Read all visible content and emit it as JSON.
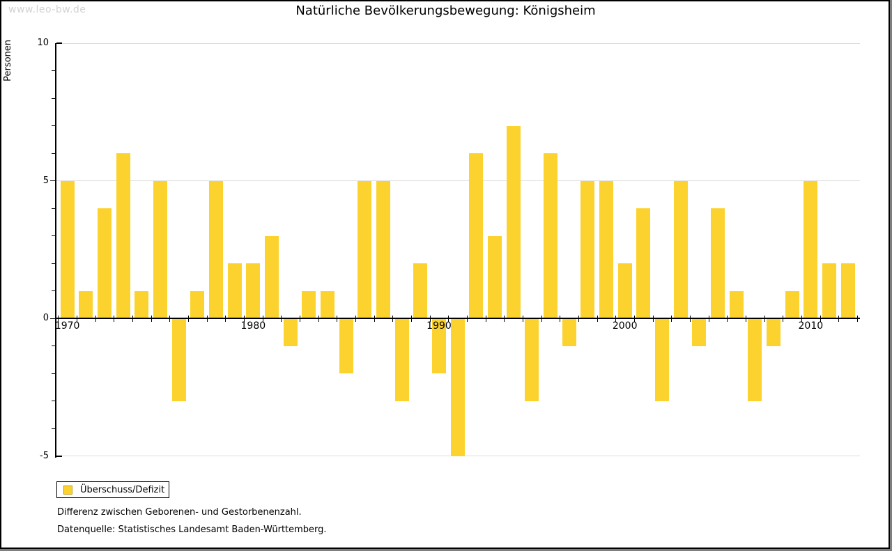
{
  "watermark": "www.leo-bw.de",
  "title": "Natürliche Bevölkerungsbewegung: Königsheim",
  "legend": {
    "label": "Überschuss/Defizit"
  },
  "footnotes": [
    "Differenz zwischen Geborenen- und Gestorbenenzahl.",
    "Datenquelle: Statistisches Landesamt Baden-Württemberg."
  ],
  "chart_data": {
    "type": "bar",
    "title": "Natürliche Bevölkerungsbewegung: Königsheim",
    "xlabel": "",
    "ylabel": "Personen",
    "series_name": "Überschuss/Defizit",
    "years": [
      1970,
      1971,
      1972,
      1973,
      1974,
      1975,
      1976,
      1977,
      1978,
      1979,
      1980,
      1981,
      1982,
      1983,
      1984,
      1985,
      1986,
      1987,
      1988,
      1989,
      1990,
      1991,
      1992,
      1993,
      1994,
      1995,
      1996,
      1997,
      1998,
      1999,
      2000,
      2001,
      2002,
      2003,
      2004,
      2005,
      2006,
      2007,
      2008,
      2009,
      2010,
      2011,
      2012
    ],
    "values": [
      5,
      1,
      4,
      6,
      1,
      5,
      -3,
      1,
      5,
      2,
      2,
      3,
      -1,
      1,
      1,
      -2,
      5,
      5,
      -3,
      2,
      -2,
      -5,
      6,
      3,
      7,
      -3,
      6,
      -1,
      5,
      5,
      2,
      4,
      -3,
      5,
      -1,
      4,
      1,
      -3,
      -1,
      1,
      5,
      2,
      2
    ],
    "ylim": [
      -5,
      10
    ],
    "ytick_values": [
      10,
      5,
      0,
      -5
    ],
    "xtick_labels": [
      "1970",
      "1980",
      "1990",
      "2000",
      "2010"
    ],
    "grid": true,
    "legend_position": "bottom-left",
    "bar_color": "#FCD32E",
    "bar_border_color": "#BE9B1B",
    "grid_color": "#dcdcdc",
    "axis_color": "#000000"
  }
}
